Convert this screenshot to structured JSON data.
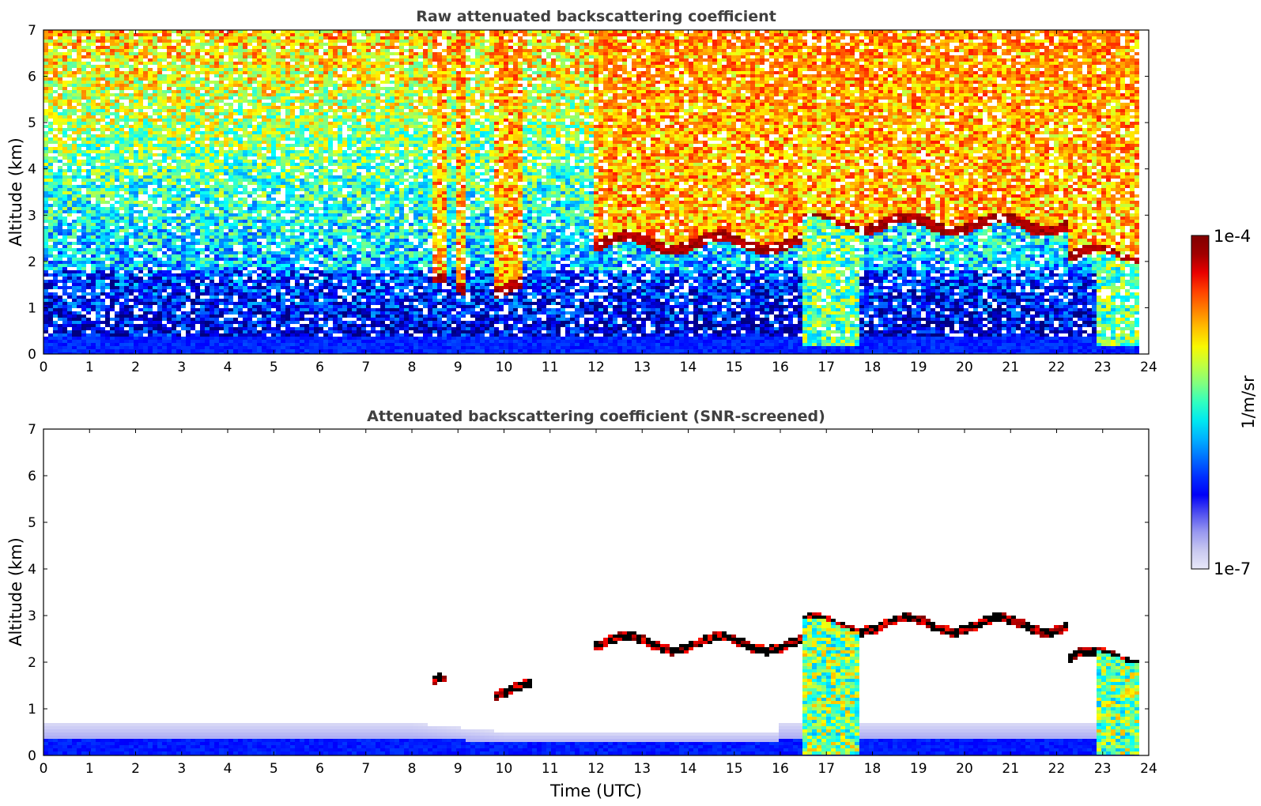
{
  "chart_data": [
    {
      "type": "heatmap",
      "title": "Raw attenuated backscattering coefficient",
      "xlabel": "",
      "ylabel": "Altitude (km)",
      "xlim": [
        0,
        24
      ],
      "ylim": [
        0,
        7
      ],
      "x_ticks": [
        0,
        1,
        2,
        3,
        4,
        5,
        6,
        7,
        8,
        9,
        10,
        11,
        12,
        13,
        14,
        15,
        16,
        17,
        18,
        19,
        20,
        21,
        22,
        23,
        24
      ],
      "y_ticks": [
        0,
        1,
        2,
        3,
        4,
        5,
        6,
        7
      ],
      "colorscale": "jet",
      "data_end_time": 23.8,
      "features": {
        "near_surface_layer": {
          "top_km": 0.4
        },
        "cloud_layers": [
          {
            "x_start": 8.4,
            "x_end": 8.8,
            "altitude_km": 1.5
          },
          {
            "x_start": 9.0,
            "x_end": 9.2,
            "altitude_km": 1.4
          },
          {
            "x_start": 9.8,
            "x_end": 10.4,
            "altitude_km": 1.45
          },
          {
            "x_start": 11.9,
            "x_end": 16.5,
            "altitude_km": 2.4
          },
          {
            "x_start": 16.5,
            "x_end": 22.3,
            "altitude_km": 2.8
          },
          {
            "x_start": 21.6,
            "x_end": 23.8,
            "altitude_km": 2.1
          }
        ],
        "precipitation": [
          {
            "x_start": 16.5,
            "x_end": 17.7
          },
          {
            "x_start": 22.9,
            "x_end": 23.8
          }
        ]
      }
    },
    {
      "type": "heatmap",
      "title": "Attenuated backscattering coefficient (SNR-screened)",
      "xlabel": "Time (UTC)",
      "ylabel": "Altitude (km)",
      "xlim": [
        0,
        24
      ],
      "ylim": [
        0,
        7
      ],
      "x_ticks": [
        0,
        1,
        2,
        3,
        4,
        5,
        6,
        7,
        8,
        9,
        10,
        11,
        12,
        13,
        14,
        15,
        16,
        17,
        18,
        19,
        20,
        21,
        22,
        23,
        24
      ],
      "y_ticks": [
        0,
        1,
        2,
        3,
        4,
        5,
        6,
        7
      ],
      "colorscale": "jet",
      "data_end_time": 23.8,
      "features": {
        "boundary_layer_top_km": 0.7,
        "cloud_layers": [
          {
            "x_start": 8.4,
            "x_end": 8.8,
            "altitude_km": 1.5
          },
          {
            "x_start": 9.8,
            "x_end": 10.6,
            "altitude_km": 1.4
          },
          {
            "x_start": 11.9,
            "x_end": 16.5,
            "altitude_km": 2.4
          },
          {
            "x_start": 16.5,
            "x_end": 22.3,
            "altitude_km": 2.8
          },
          {
            "x_start": 21.6,
            "x_end": 23.8,
            "altitude_km": 2.1
          }
        ],
        "precipitation": [
          {
            "x_start": 16.5,
            "x_end": 17.7
          },
          {
            "x_start": 22.9,
            "x_end": 23.8
          }
        ]
      }
    }
  ],
  "colorbar": {
    "label": "1/m/sr",
    "max_label": "1e-4",
    "min_label": "1e-7",
    "colors": [
      "#e8e8f8",
      "#c8c8f0",
      "#9898f0",
      "#5050f0",
      "#0000f8",
      "#0030ff",
      "#0070ff",
      "#00b0ff",
      "#00e8f0",
      "#30ffc0",
      "#80ff80",
      "#c0ff40",
      "#f8f800",
      "#ffc000",
      "#ff8000",
      "#ff4000",
      "#e80000",
      "#a00000",
      "#800000"
    ]
  }
}
